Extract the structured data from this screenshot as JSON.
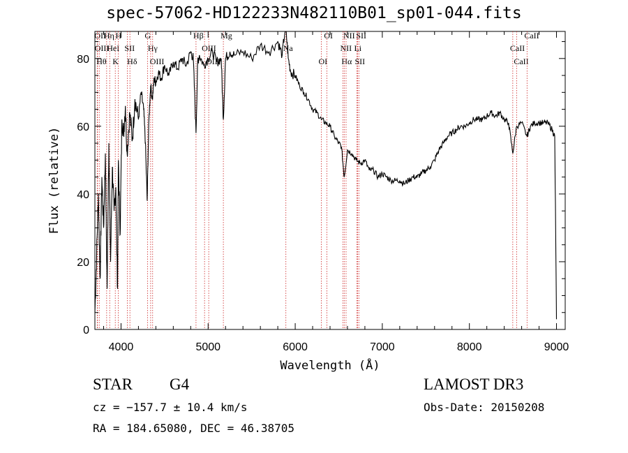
{
  "chart_data": {
    "type": "line",
    "title": "spec-57062-HD122233N482110B01_sp01-044.fits",
    "xlabel": "Wavelength (Å)",
    "ylabel": "Flux (relative)",
    "xlim": [
      3700,
      9100
    ],
    "ylim": [
      0,
      88
    ],
    "xticks": [
      4000,
      5000,
      6000,
      7000,
      8000,
      9000
    ],
    "yticks": [
      0,
      20,
      40,
      60,
      80
    ],
    "grid": false,
    "series": [
      {
        "x": [
          3700,
          3720,
          3740,
          3760,
          3780,
          3800,
          3820,
          3840,
          3860,
          3880,
          3900,
          3920,
          3940,
          3960,
          3970,
          3990,
          4010,
          4030,
          4050,
          4070,
          4100,
          4130,
          4160,
          4200,
          4230,
          4260,
          4280,
          4300,
          4320,
          4340,
          4360,
          4380,
          4400,
          4430,
          4460,
          4500,
          4550,
          4600,
          4650,
          4700,
          4750,
          4800,
          4830,
          4861,
          4880,
          4900,
          4950,
          5000,
          5050,
          5100,
          5150,
          5175,
          5200,
          5250,
          5300,
          5400,
          5500,
          5600,
          5700,
          5800,
          5850,
          5890,
          5920,
          5950,
          6000,
          6050,
          6100,
          6150,
          6200,
          6250,
          6300,
          6350,
          6400,
          6450,
          6500,
          6530,
          6563,
          6600,
          6650,
          6700,
          6750,
          6800,
          6850,
          6900,
          6950,
          7000,
          7050,
          7100,
          7150,
          7200,
          7250,
          7300,
          7350,
          7400,
          7450,
          7500,
          7550,
          7600,
          7650,
          7700,
          7750,
          7800,
          7850,
          7900,
          7950,
          8000,
          8050,
          8100,
          8150,
          8200,
          8250,
          8300,
          8350,
          8400,
          8450,
          8498,
          8542,
          8600,
          8662,
          8700,
          8750,
          8800,
          8850,
          8900,
          8950,
          8980,
          9000
        ],
        "y": [
          5,
          22,
          40,
          15,
          45,
          30,
          52,
          12,
          55,
          20,
          48,
          35,
          42,
          12,
          50,
          28,
          62,
          58,
          66,
          52,
          64,
          56,
          68,
          62,
          70,
          65,
          55,
          38,
          62,
          72,
          68,
          74,
          73,
          76,
          74,
          78,
          75,
          79,
          77,
          80,
          78,
          82,
          80,
          58,
          79,
          81,
          78,
          80,
          82,
          79,
          80,
          62,
          80,
          82,
          81,
          82,
          80,
          84,
          82,
          85,
          81,
          90,
          80,
          76,
          75,
          72,
          70,
          68,
          65,
          64,
          62,
          61,
          60,
          57,
          55,
          54,
          45,
          53,
          52,
          50,
          49,
          50,
          47,
          47,
          45,
          46,
          45,
          44,
          44,
          44,
          43,
          44,
          45,
          45,
          46,
          47,
          48,
          50,
          53,
          55,
          57,
          58,
          59,
          60,
          60,
          61,
          62,
          62,
          62,
          63,
          64,
          63,
          64,
          62,
          61,
          52,
          60,
          61,
          57,
          60,
          61,
          61,
          61,
          61,
          59,
          57,
          3
        ]
      }
    ],
    "line_labels": [
      {
        "w": 3727,
        "t": "OII"
      },
      {
        "w": 3730,
        "t": "OIII"
      },
      {
        "w": 3750,
        "t": "Hθ"
      },
      {
        "w": 3835,
        "t": "Hη"
      },
      {
        "w": 3870,
        "t": "HeI"
      },
      {
        "w": 3934,
        "t": "K"
      },
      {
        "w": 3968,
        "t": "H"
      },
      {
        "w": 4072,
        "t": "SII"
      },
      {
        "w": 4102,
        "t": "Hδ"
      },
      {
        "w": 4304,
        "t": "G"
      },
      {
        "w": 4340,
        "t": "Hγ"
      },
      {
        "w": 4363,
        "t": "OIII"
      },
      {
        "w": 4861,
        "t": "Hβ"
      },
      {
        "w": 4959,
        "t": "OIII"
      },
      {
        "w": 5007,
        "t": "OIII"
      },
      {
        "w": 5175,
        "t": "Mg"
      },
      {
        "w": 5893,
        "t": "Na"
      },
      {
        "w": 6300,
        "t": "OI"
      },
      {
        "w": 6363,
        "t": "OI"
      },
      {
        "w": 6548,
        "t": "NII"
      },
      {
        "w": 6563,
        "t": "Hα"
      },
      {
        "w": 6584,
        "t": "NII"
      },
      {
        "w": 6708,
        "t": "Li"
      },
      {
        "w": 6716,
        "t": "SII"
      },
      {
        "w": 6731,
        "t": "SII"
      },
      {
        "w": 8498,
        "t": "CaII"
      },
      {
        "w": 8542,
        "t": "CaII"
      },
      {
        "w": 8662,
        "t": "CaII"
      }
    ]
  },
  "info": {
    "class": "STAR",
    "subclass": "G4",
    "survey": "LAMOST DR3",
    "cz": "cz = −157.7 ± 10.4 km/s",
    "obs_date": "Obs-Date: 20150208",
    "coords": "RA = 184.65080, DEC =  46.38705"
  }
}
